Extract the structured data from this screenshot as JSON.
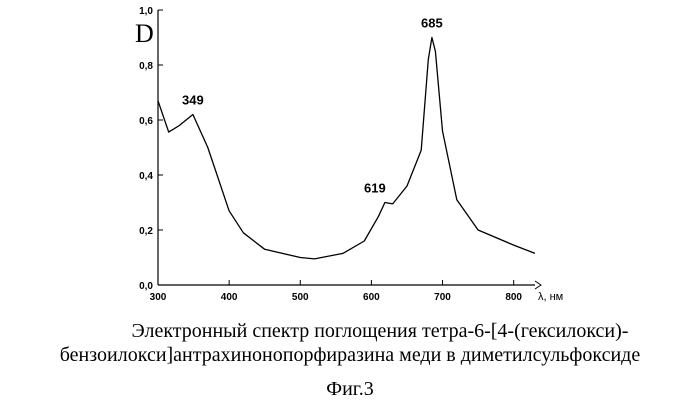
{
  "chart_data": {
    "type": "line",
    "y_label": "D",
    "x_label": "λ, нм",
    "x": [
      300,
      315,
      330,
      349,
      370,
      400,
      420,
      450,
      500,
      520,
      560,
      590,
      610,
      619,
      630,
      650,
      670,
      680,
      685,
      690,
      700,
      720,
      750,
      800,
      830
    ],
    "values": [
      0.67,
      0.556,
      0.58,
      0.62,
      0.5,
      0.27,
      0.19,
      0.13,
      0.1,
      0.095,
      0.115,
      0.16,
      0.25,
      0.3,
      0.295,
      0.36,
      0.49,
      0.82,
      0.9,
      0.85,
      0.56,
      0.31,
      0.2,
      0.145,
      0.115
    ],
    "color": "#000000",
    "peak_labels": [
      349,
      619,
      685
    ],
    "xlim": [
      300,
      830
    ],
    "xticks": [
      300,
      400,
      500,
      600,
      700,
      800
    ],
    "ylim": [
      0,
      1
    ],
    "yticks": [
      {
        "value": 0,
        "label": "0,0"
      },
      {
        "value": 0.2,
        "label": "0,2"
      },
      {
        "value": 0.4,
        "label": "0,4"
      },
      {
        "value": 0.6,
        "label": "0,6"
      },
      {
        "value": 0.8,
        "label": "0,8"
      },
      {
        "value": 1,
        "label": "1,0"
      }
    ],
    "caption": [
      "Электронный спектр поглощения тетра-6-[4-(гексилокси)-",
      "бензоилокси]антрахинонопорфиразина меди в диметилсульфоксиде"
    ],
    "figure_label": "Фиг.3"
  }
}
